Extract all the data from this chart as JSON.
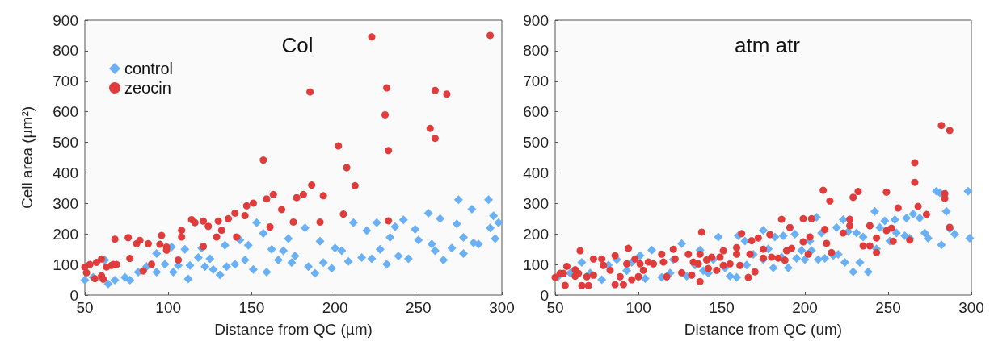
{
  "chart_data": [
    {
      "type": "scatter",
      "title": "Col",
      "xlabel": "Distance from QC (µm)",
      "ylabel": "Cell area (µm²)",
      "xlim": [
        50,
        300
      ],
      "xticks": [
        50,
        100,
        150,
        200,
        250,
        300
      ],
      "ylim": [
        0,
        900
      ],
      "yticks": [
        0,
        100,
        200,
        300,
        400,
        500,
        600,
        700,
        800,
        900
      ],
      "grid": false,
      "legend": "top left",
      "series": [
        {
          "name": "control",
          "color": "#6ab0f5",
          "marker": "diamond",
          "x": [
            50,
            55,
            64,
            62,
            68,
            74,
            77,
            82,
            87,
            93,
            93,
            98,
            102,
            103,
            106,
            110,
            112,
            113,
            118,
            120,
            122,
            125,
            127,
            131,
            134,
            135,
            140,
            143,
            146,
            148,
            153,
            151,
            157,
            159,
            162,
            166,
            169,
            172,
            174,
            176,
            182,
            184,
            188,
            191,
            193,
            198,
            200,
            204,
            208,
            211,
            216,
            219,
            222,
            225,
            227,
            231,
            233,
            236,
            238,
            241,
            244,
            248,
            250,
            256,
            258,
            260,
            263,
            265,
            270,
            274,
            273,
            277,
            277,
            282,
            283,
            286,
            292,
            293,
            295,
            296,
            298
          ],
          "values": [
            49,
            58,
            36,
            115,
            49,
            58,
            49,
            75,
            93,
            136,
            75,
            101,
            158,
            75,
            97,
            150,
            53,
            97,
            123,
            154,
            93,
            119,
            84,
            66,
            163,
            93,
            101,
            180,
            115,
            163,
            237,
            84,
            202,
            75,
            150,
            115,
            145,
            185,
            106,
            128,
            220,
            93,
            71,
            176,
            106,
            88,
            154,
            145,
            110,
            237,
            123,
            211,
            119,
            237,
            150,
            101,
            189,
            224,
            128,
            246,
            119,
            215,
            180,
            268,
            167,
            145,
            250,
            115,
            154,
            312,
            233,
            189,
            136,
            281,
            171,
            167,
            312,
            220,
            259,
            185,
            237
          ]
        },
        {
          "name": "zeocin",
          "color": "#e03c3c",
          "marker": "circle",
          "x": [
            293,
            222,
            185,
            231,
            260,
            267,
            230,
            257,
            260,
            232,
            157,
            202,
            207,
            212,
            186,
            181,
            177,
            193,
            163,
            159,
            168,
            205,
            151,
            147,
            146,
            140,
            136,
            130,
            132,
            129,
            141,
            161,
            175,
            191,
            232,
            121,
            124,
            114,
            116,
            108,
            108,
            121,
            106,
            96,
            95,
            99,
            99,
            88,
            83,
            81,
            76,
            68,
            77,
            85,
            90,
            69,
            66,
            63,
            60,
            57,
            53,
            50,
            51,
            56,
            60,
            61,
            67
          ],
          "values": [
            850,
            845,
            665,
            678,
            670,
            658,
            590,
            546,
            513,
            473,
            442,
            488,
            417,
            358,
            360,
            329,
            319,
            325,
            329,
            315,
            280,
            265,
            301,
            292,
            260,
            268,
            250,
            242,
            212,
            190,
            190,
            223,
            239,
            239,
            243,
            242,
            225,
            247,
            237,
            212,
            190,
            159,
            115,
            195,
            166,
            157,
            147,
            168,
            179,
            168,
            188,
            183,
            120,
            79,
            101,
            100,
            97,
            92,
            118,
            107,
            100,
            92,
            73,
            54,
            63,
            52,
            100
          ]
        }
      ]
    },
    {
      "type": "scatter",
      "title": "atm atr",
      "xlabel": "Distance from QC (um)",
      "xlim": [
        50,
        300
      ],
      "xticks": [
        50,
        100,
        150,
        200,
        250,
        300
      ],
      "ylim": [
        0,
        900
      ],
      "yticks": [
        0,
        100,
        200,
        300,
        400,
        500,
        600,
        700,
        800,
        900
      ],
      "grid": false,
      "legend": false,
      "series": [
        {
          "color": "#6ab0f5",
          "marker": "diamond",
          "x": [
            52,
            59,
            66,
            71,
            78,
            82,
            87,
            93,
            96,
            101,
            104,
            108,
            114,
            119,
            121,
            126,
            129,
            134,
            137,
            139,
            142,
            145,
            148,
            152,
            155,
            159,
            160,
            164,
            165,
            169,
            175,
            175,
            178,
            181,
            182,
            186,
            187,
            190,
            194,
            195,
            198,
            200,
            203,
            204,
            207,
            208,
            210,
            212,
            217,
            219,
            220,
            223,
            224,
            226,
            229,
            231,
            233,
            235,
            238,
            242,
            243,
            245,
            248,
            251,
            254,
            255,
            260,
            261,
            263,
            265,
            269,
            272,
            274,
            279,
            281,
            282,
            285,
            287,
            290,
            298,
            299
          ],
          "values": [
            62,
            72,
            107,
            72,
            50,
            98,
            116,
            80,
            107,
            129,
            54,
            147,
            58,
            72,
            116,
            168,
            62,
            98,
            147,
            80,
            72,
            116,
            190,
            89,
            62,
            58,
            194,
            177,
            98,
            133,
            212,
            116,
            151,
            89,
            190,
            124,
            194,
            89,
            199,
            120,
            146,
            116,
            177,
            146,
            255,
            116,
            203,
            120,
            129,
            221,
            133,
            247,
            107,
            208,
            76,
            203,
            107,
            190,
            76,
            274,
            151,
            221,
            243,
            177,
            247,
            203,
            194,
            252,
            186,
            265,
            252,
            203,
            186,
            340,
            335,
            164,
            274,
            217,
            199,
            340,
            186
          ]
        },
        {
          "color": "#e03c3c",
          "marker": "circle",
          "x": [
            282,
            287,
            266,
            266,
            268,
            273,
            284,
            284,
            287,
            263,
            256,
            249,
            249,
            252,
            253,
            239,
            243,
            243,
            239,
            232,
            229,
            227,
            227,
            223,
            235,
            211,
            215,
            212,
            213,
            216,
            204,
            199,
            203,
            199,
            202,
            186,
            191,
            192,
            189,
            188,
            184,
            180,
            179,
            172,
            175,
            175,
            168,
            167,
            170,
            166,
            162,
            159,
            159,
            161,
            155,
            151,
            151,
            149,
            147,
            144,
            142,
            141,
            138,
            137,
            137,
            136,
            133,
            130,
            132,
            126,
            122,
            121,
            117,
            115,
            114,
            109,
            106,
            103,
            101,
            100,
            98,
            96,
            93,
            94,
            91,
            89,
            86,
            86,
            83,
            79,
            78,
            73,
            73,
            70,
            69,
            66,
            65,
            64,
            62,
            62,
            57,
            56,
            55,
            53,
            50
          ],
          "values": [
            555,
            539,
            433,
            369,
            290,
            264,
            332,
            317,
            222,
            180,
            285,
            337,
            211,
            219,
            176,
            227,
            187,
            139,
            161,
            339,
            320,
            248,
            227,
            203,
            161,
            343,
            308,
            215,
            169,
            139,
            250,
            250,
            190,
            174,
            134,
            248,
            221,
            153,
            145,
            114,
            121,
            124,
            198,
            187,
            150,
            121,
            178,
            134,
            76,
            58,
            201,
            155,
            134,
            97,
            102,
            145,
            97,
            124,
            81,
            124,
            87,
            115,
            206,
            134,
            44,
            102,
            108,
            134,
            65,
            73,
            118,
            150,
            60,
            108,
            134,
            102,
            108,
            81,
            102,
            60,
            118,
            50,
            102,
            153,
            34,
            60,
            129,
            34,
            81,
            97,
            118,
            118,
            65,
            31,
            60,
            31,
            145,
            71,
            83,
            62,
            94,
            32,
            71,
            71,
            58
          ]
        }
      ]
    }
  ]
}
